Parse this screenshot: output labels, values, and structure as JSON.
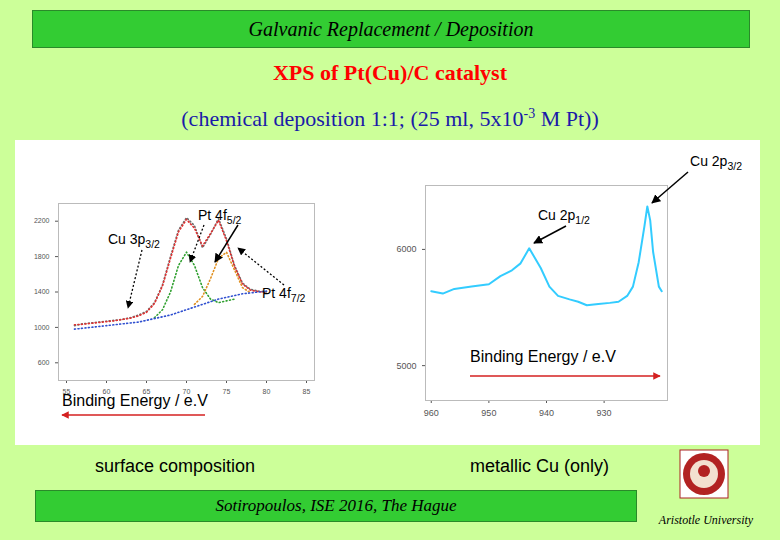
{
  "header": "Galvanic Replacement / Deposition",
  "title": "XPS of Pt(Cu)/C catalyst",
  "subtitle": "(chemical deposition 1:1; (25 ml, 5x10-3 M Pt))",
  "chart_data": [
    {
      "type": "line",
      "xlabel": "Binding Energy / e.V",
      "x": [
        56,
        57,
        58,
        59,
        60,
        61,
        62,
        63,
        64,
        65,
        66,
        67,
        68,
        69,
        70,
        71,
        72,
        73,
        74,
        75,
        76,
        77,
        78,
        79,
        80
      ],
      "series": [
        {
          "color": "#707070",
          "line_style": "dotted",
          "values": [
            1020,
            1040,
            1050,
            1060,
            1070,
            1080,
            1090,
            1110,
            1140,
            1180,
            1280,
            1480,
            1800,
            2100,
            2240,
            2150,
            1900,
            2050,
            2230,
            2000,
            1700,
            1500,
            1430,
            1410,
            1400
          ]
        },
        {
          "color": "#e03030",
          "line_style": "dotted",
          "values": [
            1030,
            1035,
            1045,
            1055,
            1065,
            1075,
            1090,
            1105,
            1130,
            1170,
            1270,
            1470,
            1780,
            2080,
            2220,
            2120,
            1920,
            2060,
            2210,
            1980,
            1690,
            1490,
            1420,
            1405,
            1395
          ]
        },
        {
          "color": "#30a030",
          "line_style": "dotted",
          "values": [
            null,
            null,
            null,
            null,
            null,
            null,
            null,
            null,
            null,
            null,
            1110,
            1200,
            1400,
            1700,
            1850,
            1700,
            1450,
            1320,
            1280,
            1300,
            1320,
            null,
            null,
            null,
            null
          ]
        },
        {
          "color": "#e09020",
          "line_style": "dotted",
          "values": [
            null,
            null,
            null,
            null,
            null,
            null,
            null,
            null,
            null,
            null,
            null,
            null,
            null,
            null,
            null,
            1260,
            1350,
            1550,
            1780,
            1850,
            1650,
            1450,
            1390,
            null,
            null
          ]
        },
        {
          "color": "#3050d0",
          "line_style": "dotted",
          "values": [
            980,
            990,
            1000,
            1010,
            1020,
            1030,
            1040,
            1050,
            1060,
            1080,
            1100,
            1120,
            1140,
            1170,
            1200,
            1230,
            1260,
            1290,
            1320,
            1340,
            1360,
            1380,
            1390,
            1400,
            1410
          ]
        }
      ],
      "xlim": [
        54,
        86
      ],
      "xticks": [
        55,
        60,
        65,
        70,
        75,
        80,
        85
      ],
      "ylim": [
        400,
        2400
      ],
      "yticks": [
        600,
        1000,
        1400,
        1800,
        2200
      ],
      "annotations": [
        "Cu 3p3/2",
        "Pt 4f5/2",
        "Pt 4f7/2"
      ]
    },
    {
      "type": "line",
      "xlabel": "Binding Energy / e.V",
      "x": [
        960,
        958,
        956,
        953,
        950,
        948,
        946,
        944.5,
        943,
        941,
        939.5,
        938,
        936,
        934.5,
        933,
        931,
        929,
        927.5,
        926,
        925,
        924,
        923,
        922.5,
        922,
        921.5,
        920.5,
        920
      ],
      "series": [
        {
          "color": "#33ccff",
          "line_style": "solid",
          "values": [
            5640,
            5620,
            5660,
            5680,
            5700,
            5770,
            5820,
            5880,
            6010,
            5840,
            5680,
            5600,
            5570,
            5550,
            5520,
            5530,
            5540,
            5550,
            5600,
            5680,
            5890,
            6200,
            6370,
            6250,
            5980,
            5680,
            5640
          ]
        }
      ],
      "xlim": [
        961,
        919
      ],
      "xticks": [
        960,
        950,
        940,
        930
      ],
      "ylim": [
        4700,
        6550
      ],
      "yticks": [
        5000,
        6000
      ],
      "annotations": [
        "Cu 2p3/2",
        "Cu 2p1/2"
      ]
    }
  ],
  "captions": [
    "surface composition",
    "metallic Cu (only)"
  ],
  "footer": "Sotiropoulos, ISE 2016, The Hague",
  "institution": "Aristotle University"
}
